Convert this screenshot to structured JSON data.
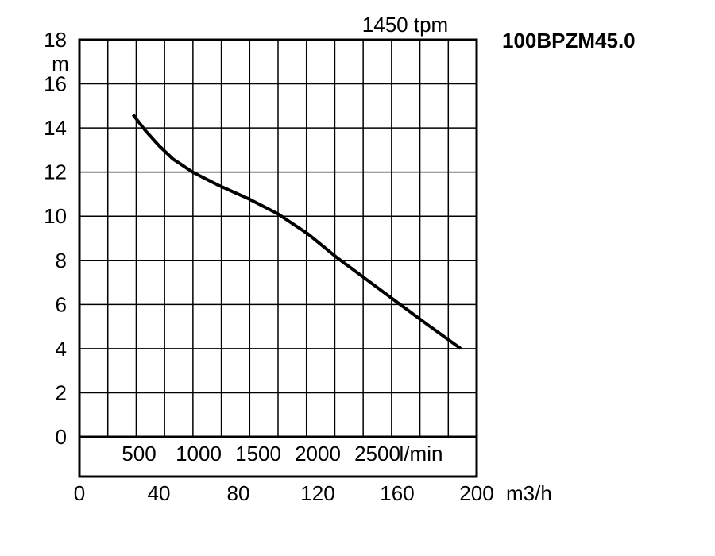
{
  "chart_data": {
    "type": "line",
    "title": "1450 tpm",
    "model": "100BPZM45.0",
    "ylabel": "m",
    "xlabel": "m3/h",
    "ylim": [
      0,
      18
    ],
    "xlim": [
      0,
      200
    ],
    "grid": true,
    "y_ticks": [
      "0",
      "2",
      "4",
      "6",
      "8",
      "10",
      "12",
      "14",
      "16",
      "18"
    ],
    "x_ticks": [
      "0",
      "40",
      "80",
      "120",
      "160",
      "200"
    ],
    "secondary_axis": {
      "ticks": [
        "500",
        "1000",
        "1500",
        "2000",
        "2500"
      ],
      "unit": "l/min"
    },
    "series": [
      {
        "x": [
          27,
          33,
          40,
          47,
          57,
          70,
          85,
          100,
          115,
          130,
          145,
          160,
          175,
          192
        ],
        "y": [
          14.6,
          13.9,
          13.2,
          12.6,
          12.0,
          11.4,
          10.8,
          10.1,
          9.2,
          8.1,
          7.1,
          6.1,
          5.1,
          4.0
        ]
      }
    ]
  }
}
